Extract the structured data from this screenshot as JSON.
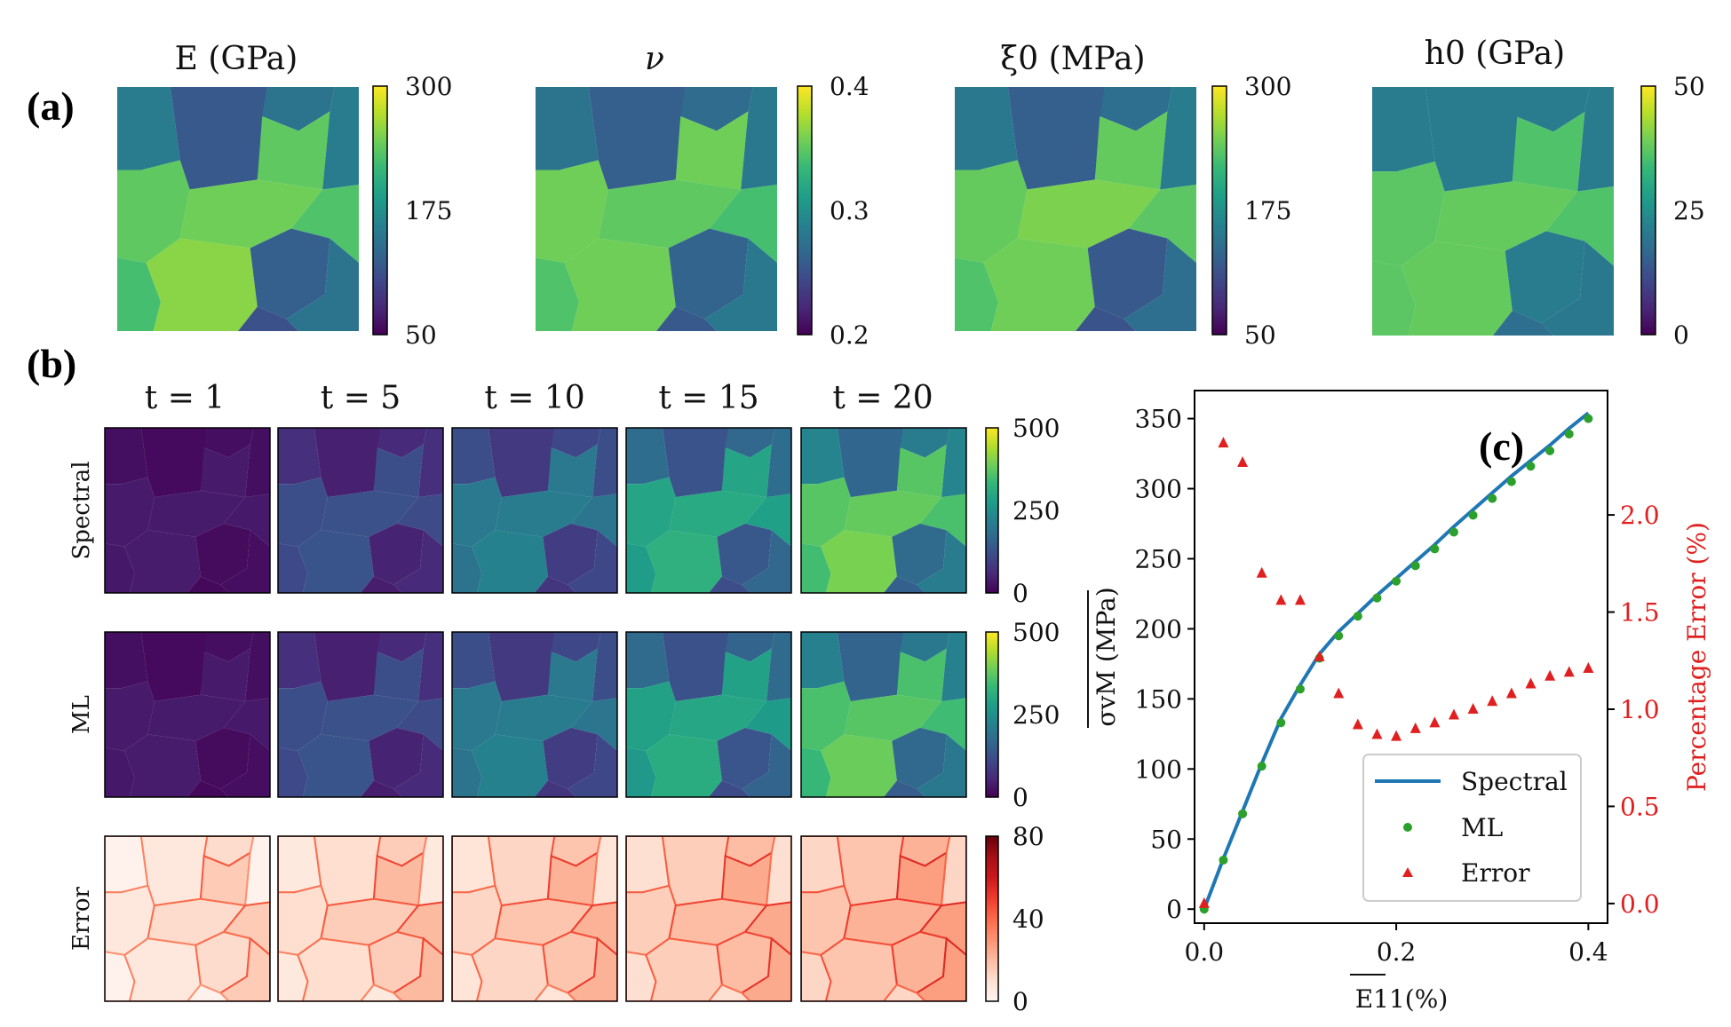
{
  "panel_labels": {
    "a": "(a)",
    "b": "(b)",
    "c": "(c)"
  },
  "panel_a": {
    "maps": [
      {
        "title": "E (GPa)",
        "ticks": [
          "300",
          "175",
          "50"
        ],
        "range": [
          50,
          300
        ],
        "palette": "viridis"
      },
      {
        "title": "ν",
        "ticks": [
          "0.4",
          "0.3",
          "0.2"
        ],
        "range": [
          0.2,
          0.4
        ],
        "palette": "viridis"
      },
      {
        "title": "ξ0 (MPa)",
        "ticks": [
          "300",
          "175",
          "50"
        ],
        "range": [
          50,
          300
        ],
        "palette": "viridis"
      },
      {
        "title": "h0 (GPa)",
        "ticks": [
          "50",
          "25",
          "0"
        ],
        "range": [
          0,
          50
        ],
        "palette": "viridis"
      }
    ]
  },
  "panel_b": {
    "time_labels": [
      "t = 1",
      "t = 5",
      "t = 10",
      "t = 15",
      "t = 20"
    ],
    "rows": [
      {
        "label": "Spectral",
        "ticks": [
          "500",
          "250",
          "0"
        ],
        "palette": "viridis",
        "levels": [
          0.05,
          0.3,
          0.5,
          0.72,
          0.9
        ]
      },
      {
        "label": "ML",
        "ticks": [
          "500",
          "250",
          "0"
        ],
        "palette": "viridis",
        "levels": [
          0.05,
          0.3,
          0.5,
          0.7,
          0.87
        ]
      },
      {
        "label": "Error",
        "ticks": [
          "80",
          "40",
          "0"
        ],
        "palette": "reds",
        "levels": [
          0.05,
          0.2,
          0.28,
          0.35,
          0.45
        ]
      }
    ]
  },
  "chart_data": {
    "type": "line",
    "panel": "(c)",
    "xlabel": "E11(%)",
    "ylabel": "σvM (MPa)",
    "y2label": "Percentage Error (%)",
    "xlim": [
      -0.01,
      0.42
    ],
    "ylim": [
      -10,
      370
    ],
    "y2lim": [
      -0.101,
      2.64
    ],
    "x_ticks": [
      "0.0",
      "0.2",
      "0.4"
    ],
    "y_ticks": [
      "0",
      "50",
      "100",
      "150",
      "200",
      "250",
      "300",
      "350"
    ],
    "y2_ticks": [
      "0.0",
      "0.5",
      "1.0",
      "1.5",
      "2.0"
    ],
    "series": [
      {
        "name": "Spectral",
        "style": "line",
        "color": "#1f77b4",
        "x": [
          0.0,
          0.02,
          0.04,
          0.06,
          0.08,
          0.1,
          0.12,
          0.14,
          0.16,
          0.18,
          0.2,
          0.22,
          0.24,
          0.26,
          0.28,
          0.3,
          0.32,
          0.34,
          0.36,
          0.38,
          0.4
        ],
        "y": [
          0,
          36,
          70,
          104,
          136,
          160,
          182,
          198,
          211,
          224,
          236,
          248,
          260,
          273,
          285,
          297,
          309,
          320,
          331,
          343,
          354
        ]
      },
      {
        "name": "ML",
        "style": "marker-dot",
        "color": "#2ca02c",
        "x": [
          0.0,
          0.02,
          0.04,
          0.06,
          0.08,
          0.1,
          0.12,
          0.14,
          0.16,
          0.18,
          0.2,
          0.22,
          0.24,
          0.26,
          0.28,
          0.3,
          0.32,
          0.34,
          0.36,
          0.38,
          0.4
        ],
        "y": [
          0,
          35,
          68,
          102,
          133,
          157,
          179,
          195,
          209,
          222,
          234,
          245,
          257,
          269,
          281,
          293,
          305,
          316,
          327,
          339,
          350
        ]
      },
      {
        "name": "Error",
        "style": "marker-triangle",
        "color": "#e02020",
        "axis": "right",
        "x": [
          0.0,
          0.02,
          0.04,
          0.06,
          0.08,
          0.1,
          0.12,
          0.14,
          0.16,
          0.18,
          0.2,
          0.22,
          0.24,
          0.26,
          0.28,
          0.3,
          0.32,
          0.34,
          0.36,
          0.38,
          0.4
        ],
        "y": [
          0.0,
          2.37,
          2.27,
          1.7,
          1.56,
          1.56,
          1.27,
          1.08,
          0.92,
          0.87,
          0.86,
          0.9,
          0.93,
          0.97,
          1.0,
          1.04,
          1.08,
          1.13,
          1.17,
          1.19,
          1.21
        ]
      }
    ],
    "legend": [
      "Spectral",
      "ML",
      "Error"
    ],
    "legend_position": "bottom-right"
  }
}
